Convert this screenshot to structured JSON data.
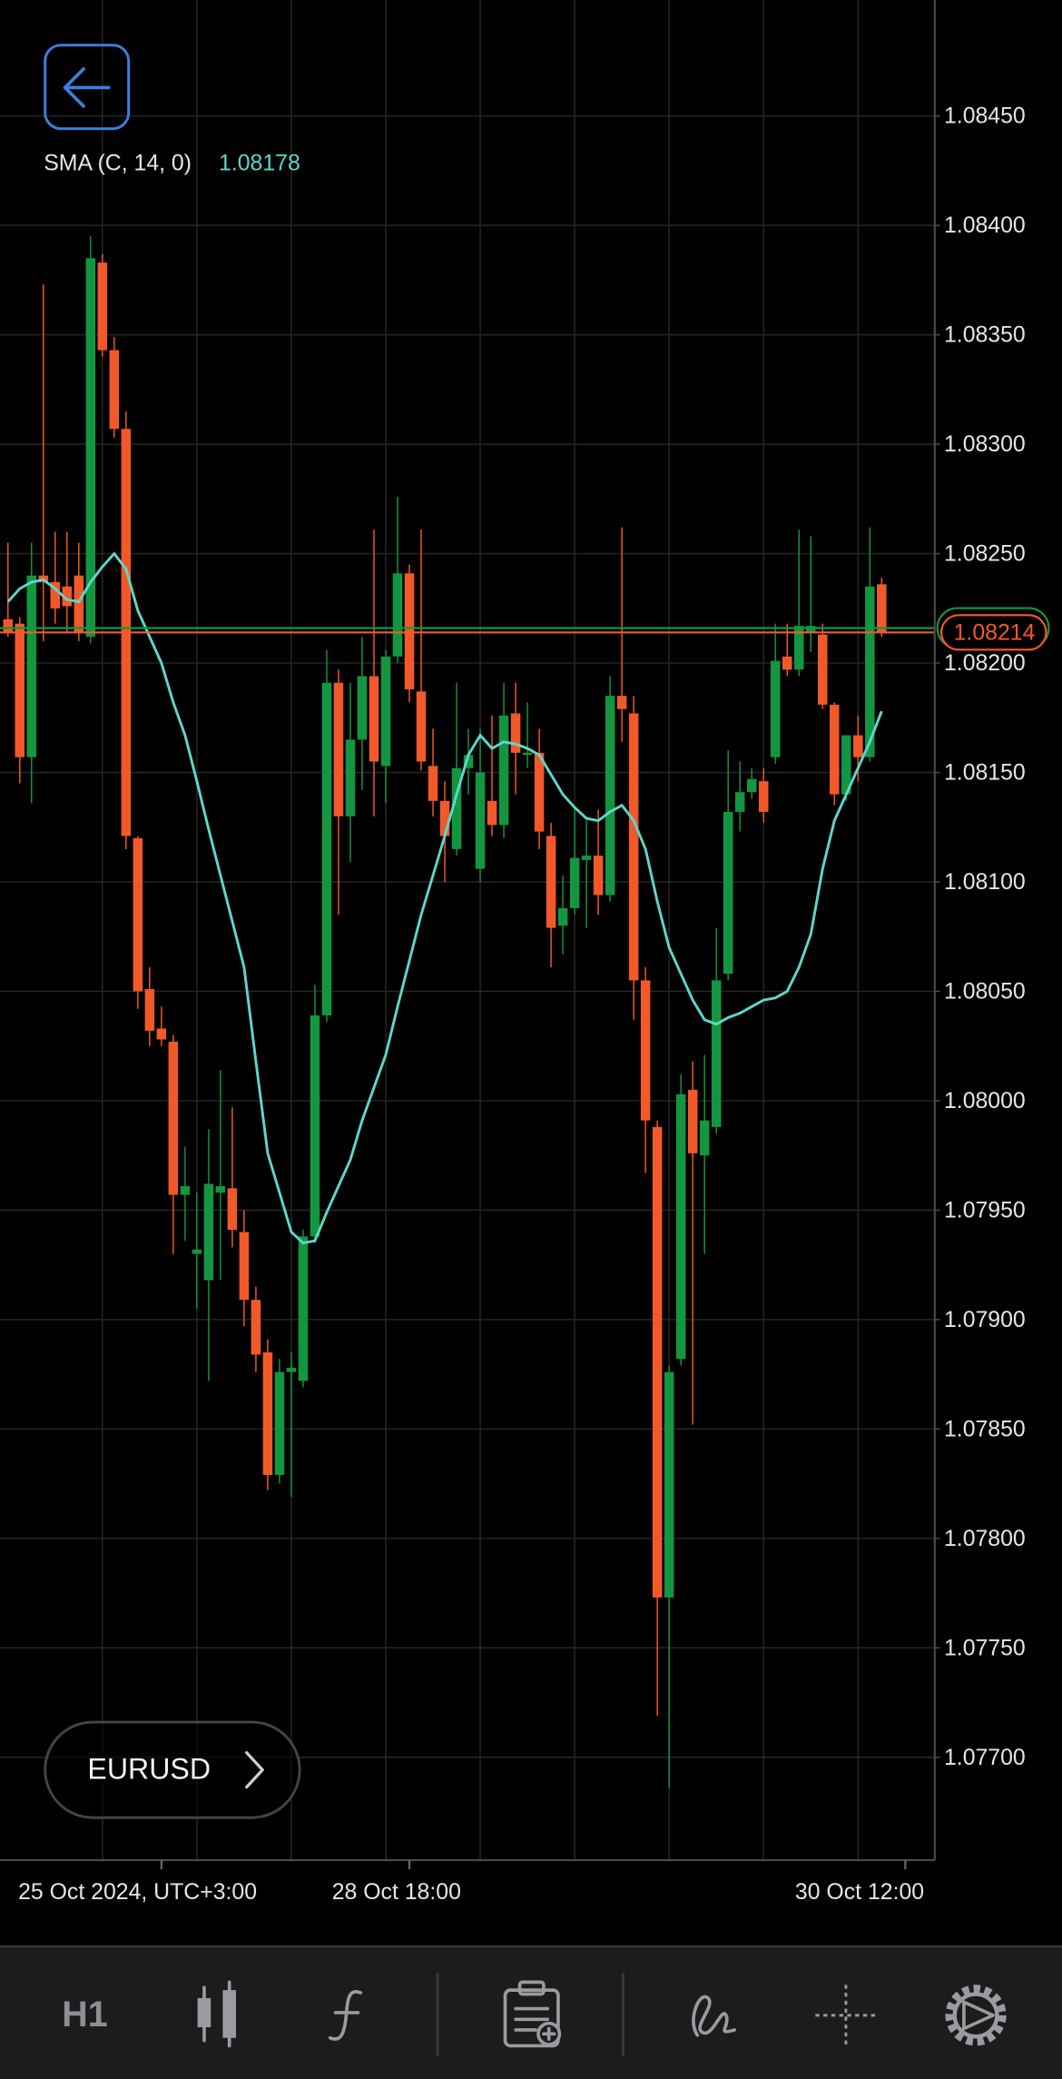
{
  "chart_data": {
    "type": "candlestick",
    "categories": [
      null,
      null,
      null,
      null,
      null,
      null,
      null,
      null,
      null,
      null,
      null,
      null,
      null,
      "25 Oct 2024, UTC+3:00",
      null,
      null,
      null,
      null,
      null,
      null,
      null,
      null,
      null,
      null,
      null,
      null,
      null,
      null,
      null,
      null,
      null,
      null,
      null,
      null,
      "28 Oct 18:00",
      null,
      null,
      null,
      null,
      null,
      null,
      null,
      null,
      null,
      null,
      null,
      null,
      null,
      null,
      null,
      null,
      null,
      null,
      null,
      null,
      null,
      null,
      null,
      null,
      null,
      null,
      null,
      null,
      null,
      null,
      null,
      null,
      null,
      null,
      null,
      null,
      null,
      null,
      null,
      null,
      null,
      "30 Oct 12:00"
    ],
    "open": [
      1.0822,
      1.08218,
      1.08157,
      1.0824,
      1.08237,
      1.08235,
      1.0824,
      1.08212,
      1.08383,
      1.08343,
      1.08307,
      1.0812,
      1.08051,
      1.08033,
      1.08027,
      1.07957,
      1.0793,
      1.07918,
      1.07958,
      1.0796,
      1.0794,
      1.07909,
      1.07885,
      1.07829,
      1.07876,
      1.07872,
      1.07938,
      1.08039,
      1.08191,
      1.0813,
      1.08165,
      1.08194,
      1.08153,
      1.08203,
      1.08241,
      1.08187,
      1.08153,
      1.08137,
      1.08115,
      1.08152,
      1.08106,
      1.08137,
      1.08126,
      1.08177,
      1.08158,
      1.08159,
      1.08121,
      1.0808,
      1.08088,
      1.0811,
      1.08112,
      1.08094,
      1.08185,
      1.08177,
      1.08055,
      1.07988,
      1.07773,
      1.07882,
      1.08005,
      1.07975,
      1.07988,
      1.08058,
      1.08132,
      1.08141,
      1.08146,
      1.08157,
      1.08203,
      1.08197,
      1.08214,
      1.08213,
      1.08181,
      1.0814,
      1.08167,
      1.08157,
      1.08236,
      null,
      null
    ],
    "high": [
      1.08255,
      1.08221,
      1.08255,
      1.08373,
      1.0826,
      1.0826,
      1.08255,
      1.08395,
      1.08387,
      1.08349,
      1.08315,
      1.08121,
      1.08061,
      1.08043,
      1.0803,
      1.07979,
      1.07958,
      1.07987,
      1.08014,
      1.07997,
      1.0795,
      1.07915,
      1.07891,
      1.07882,
      1.07885,
      1.07941,
      1.08053,
      1.08206,
      1.08197,
      1.08191,
      1.08212,
      1.08261,
      1.08206,
      1.08276,
      1.08245,
      1.08261,
      1.0817,
      1.08146,
      1.08191,
      1.0817,
      1.0817,
      1.08176,
      1.08191,
      1.08191,
      1.08182,
      1.0817,
      1.08127,
      1.08103,
      1.08133,
      1.08128,
      1.08133,
      1.08194,
      1.08262,
      1.08185,
      1.08061,
      1.07991,
      1.07879,
      1.08012,
      1.08018,
      1.08021,
      1.08079,
      1.0816,
      1.08155,
      1.08152,
      1.08152,
      1.08218,
      1.08218,
      1.08261,
      1.08258,
      1.08218,
      1.08182,
      1.08167,
      1.08176,
      1.08262,
      1.08239,
      null,
      null
    ],
    "low": [
      1.08212,
      1.08145,
      1.08136,
      1.0821,
      1.08218,
      1.08214,
      1.0821,
      1.08209,
      1.0834,
      1.08303,
      1.08115,
      1.08042,
      1.08025,
      1.08025,
      1.0793,
      1.07936,
      1.07905,
      1.07872,
      1.07918,
      1.07933,
      1.07897,
      1.07876,
      1.07822,
      1.07825,
      1.07819,
      1.07869,
      1.07935,
      1.08036,
      1.08085,
      1.08109,
      1.08142,
      1.0813,
      1.08136,
      1.082,
      1.08182,
      1.08151,
      1.0813,
      1.081,
      1.08112,
      1.0814,
      1.081,
      1.08121,
      1.0812,
      1.0814,
      1.08152,
      1.08115,
      1.08061,
      1.08067,
      1.08085,
      1.08079,
      1.08085,
      1.08091,
      1.08164,
      1.08037,
      1.07967,
      1.07719,
      1.07686,
      1.07879,
      1.07852,
      1.0793,
      1.07985,
      1.08055,
      1.08123,
      1.08138,
      1.08127,
      1.08154,
      1.08194,
      1.08194,
      1.08205,
      1.08179,
      1.08135,
      1.08137,
      1.08146,
      1.08155,
      1.08212,
      null,
      null
    ],
    "close": [
      1.08214,
      1.08157,
      1.0824,
      1.08237,
      1.08225,
      1.08226,
      1.08214,
      1.08385,
      1.08343,
      1.08307,
      1.08121,
      1.0805,
      1.08032,
      1.08028,
      1.07957,
      1.07961,
      1.07932,
      1.07962,
      1.07961,
      1.07941,
      1.07909,
      1.07884,
      1.07829,
      1.07876,
      1.07878,
      1.07938,
      1.08039,
      1.08191,
      1.0813,
      1.08165,
      1.08194,
      1.08155,
      1.08203,
      1.08241,
      1.08188,
      1.08155,
      1.08137,
      1.08121,
      1.08152,
      1.08158,
      1.0815,
      1.08126,
      1.08176,
      1.08159,
      1.08159,
      1.08123,
      1.08079,
      1.08088,
      1.08111,
      1.08112,
      1.08094,
      1.08185,
      1.08179,
      1.08055,
      1.07991,
      1.07773,
      1.07876,
      1.08003,
      1.07976,
      1.07991,
      1.08055,
      1.08132,
      1.08141,
      1.08147,
      1.08132,
      1.08201,
      1.08197,
      1.08217,
      1.08217,
      1.08181,
      1.0814,
      1.08167,
      1.08157,
      1.08235,
      1.08214,
      null,
      null
    ],
    "up_color": "#14953f",
    "down_color": "#f2592a",
    "indicator": {
      "label": "SMA (C, 14, 0)",
      "last_value": 1.08178,
      "color": "#5ed6cb",
      "values": [
        1.08228,
        1.08234,
        1.08237,
        1.08238,
        1.08234,
        1.08229,
        1.08228,
        1.08237,
        1.08244,
        1.0825,
        1.08243,
        1.08224,
        1.08212,
        1.082,
        1.08182,
        1.08167,
        1.08146,
        1.08124,
        1.08103,
        1.08082,
        1.08061,
        1.08018,
        1.07976,
        1.07958,
        1.0794,
        1.07935,
        1.07936,
        1.07949,
        1.07961,
        1.07973,
        1.07991,
        1.08006,
        1.08021,
        1.08043,
        1.08064,
        1.08085,
        1.08103,
        1.08121,
        1.0814,
        1.08158,
        1.08167,
        1.08161,
        1.08164,
        1.08163,
        1.08161,
        1.08158,
        1.08149,
        1.0814,
        1.08134,
        1.08129,
        1.08128,
        1.08132,
        1.08135,
        1.08128,
        1.08115,
        1.08091,
        1.0807,
        1.08058,
        1.08046,
        1.08037,
        1.08035,
        1.08038,
        1.0804,
        1.08043,
        1.08046,
        1.08047,
        1.0805,
        1.08061,
        1.08076,
        1.08106,
        1.08128,
        1.0814,
        1.08152,
        1.08164,
        1.08178,
        null,
        null
      ]
    },
    "bid": 1.08214,
    "bid_color": "#f2592a",
    "ask": 1.08216,
    "ask_color": "#14953f",
    "ylim": [
      1.07653,
      1.08503
    ],
    "yticks": [
      {
        "value": 1.077,
        "label": "1.07700"
      },
      {
        "value": 1.0775,
        "label": "1.07750"
      },
      {
        "value": 1.078,
        "label": "1.07800"
      },
      {
        "value": 1.0785,
        "label": "1.07850"
      },
      {
        "value": 1.079,
        "label": "1.07900"
      },
      {
        "value": 1.0795,
        "label": "1.07950"
      },
      {
        "value": 1.08,
        "label": "1.08000"
      },
      {
        "value": 1.0805,
        "label": "1.08050"
      },
      {
        "value": 1.081,
        "label": "1.08100"
      },
      {
        "value": 1.0815,
        "label": "1.08150"
      },
      {
        "value": 1.082,
        "label": "1.08200"
      },
      {
        "value": 1.0825,
        "label": "1.08250"
      },
      {
        "value": 1.083,
        "label": "1.08300"
      },
      {
        "value": 1.0835,
        "label": "1.08350"
      },
      {
        "value": 1.084,
        "label": "1.08400"
      },
      {
        "value": 1.0845,
        "label": "1.08450"
      }
    ],
    "grid": true
  },
  "symbol_button": "EURUSD",
  "toolbar": {
    "timeframe": "H1"
  }
}
